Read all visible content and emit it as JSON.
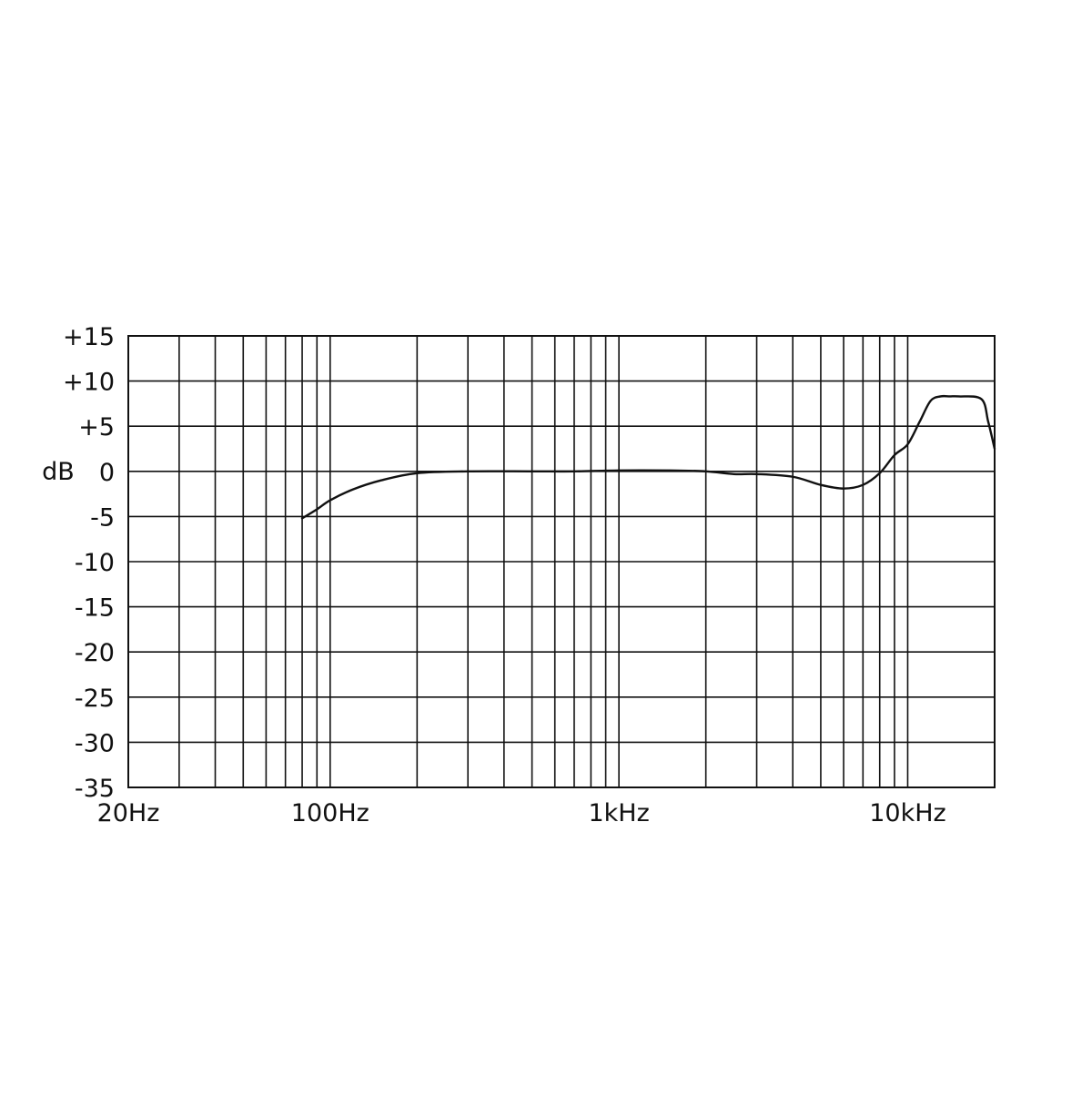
{
  "chart_data": {
    "type": "line",
    "title": "",
    "xlabel": "",
    "ylabel": "",
    "unit_label": "dB",
    "x_scale": "log",
    "x_unit": "Hz",
    "xlim": [
      20,
      20000
    ],
    "ylim": [
      -35,
      15
    ],
    "grid": true,
    "line_color": "#111111",
    "grid_color": "#111111",
    "x_tick_labels": [
      {
        "value": 20,
        "label": "20Hz"
      },
      {
        "value": 100,
        "label": "100Hz"
      },
      {
        "value": 1000,
        "label": "1kHz"
      },
      {
        "value": 10000,
        "label": "10kHz"
      }
    ],
    "y_tick_labels": [
      {
        "value": 15,
        "label": "+15"
      },
      {
        "value": 10,
        "label": "+10"
      },
      {
        "value": 5,
        "label": "+5"
      },
      {
        "value": 0,
        "label": "0"
      },
      {
        "value": -5,
        "label": "-5"
      },
      {
        "value": -10,
        "label": "-10"
      },
      {
        "value": -15,
        "label": "-15"
      },
      {
        "value": -20,
        "label": "-20"
      },
      {
        "value": -25,
        "label": "-25"
      },
      {
        "value": -30,
        "label": "-30"
      },
      {
        "value": -35,
        "label": "-35"
      }
    ],
    "x_gridlines": [
      20,
      30,
      40,
      50,
      60,
      70,
      80,
      90,
      100,
      200,
      300,
      400,
      500,
      600,
      700,
      800,
      900,
      1000,
      2000,
      3000,
      4000,
      5000,
      6000,
      7000,
      8000,
      9000,
      10000,
      20000
    ],
    "series": [
      {
        "x": [
          80,
          90,
          100,
          120,
          150,
          200,
          300,
          500,
          700,
          1000,
          1500,
          2000,
          2500,
          3000,
          4000,
          5000,
          6000,
          7000,
          8000,
          9000,
          10000,
          11000,
          12000,
          13000,
          14000,
          15000,
          18000,
          19000,
          20000
        ],
        "y": [
          -5.2,
          -4.2,
          -3.2,
          -2.0,
          -1.0,
          -0.2,
          0.0,
          0.0,
          0.0,
          0.1,
          0.1,
          0.0,
          -0.3,
          -0.3,
          -0.6,
          -1.5,
          -1.9,
          -1.5,
          -0.2,
          1.8,
          3.0,
          5.5,
          7.8,
          8.3,
          8.3,
          8.3,
          8.0,
          5.5,
          2.5
        ]
      }
    ]
  }
}
